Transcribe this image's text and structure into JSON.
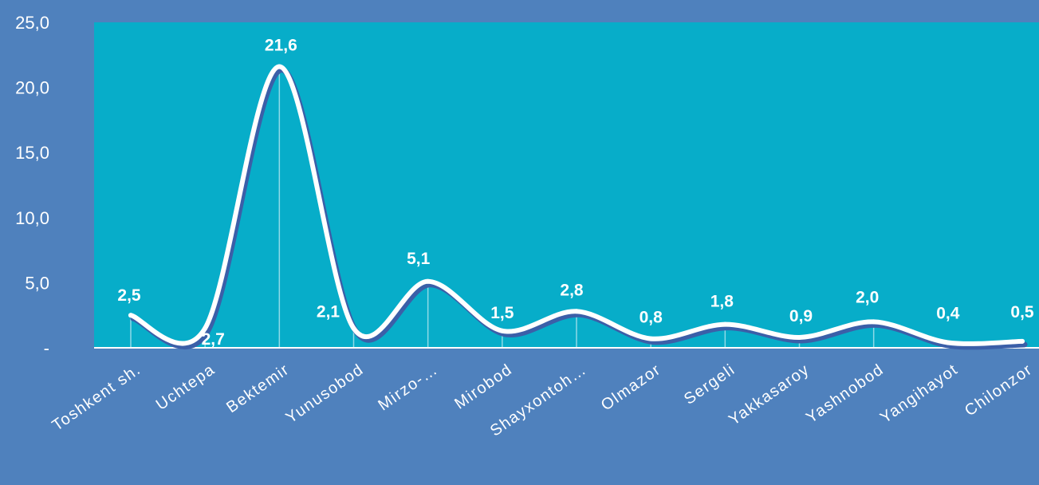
{
  "chart_data": {
    "type": "line",
    "categories": [
      "Toshkent sh.",
      "Uchtepa",
      "Bektemir",
      "Yunusobod",
      "Mirzo-…",
      "Mirobod",
      "Shayxontoh…",
      "Olmazor",
      "Sergeli",
      "Yakkasaroy",
      "Yashnobod",
      "Yangihayot",
      "Chilonzor"
    ],
    "values": [
      2.5,
      2.7,
      21.6,
      2.1,
      5.1,
      1.5,
      2.8,
      0.8,
      1.8,
      0.9,
      2.0,
      0.4,
      0.5
    ],
    "data_labels": [
      "2,5",
      "2,7",
      "21,6",
      "2,1",
      "5,1",
      "1,5",
      "2,8",
      "0,8",
      "1,8",
      "0,9",
      "2,0",
      "0,4",
      "0,5"
    ],
    "curve_values": [
      2.5,
      1.5,
      21.6,
      1.5,
      5.1,
      1.3,
      2.8,
      0.7,
      1.8,
      0.8,
      2.0,
      0.4,
      0.5
    ],
    "ylim": [
      0,
      25
    ],
    "y_ticks": [
      0,
      5,
      10,
      15,
      20,
      25
    ],
    "y_tick_labels": [
      "-",
      "5,0",
      "10,0",
      "15,0",
      "20,0",
      "25,0"
    ],
    "smooth": true,
    "grid": false,
    "drop_lines": true,
    "colors": {
      "background": "#4f81bd",
      "plot_area": "#07adc9",
      "line": "#ffffff",
      "shadow": "#3b5fa8",
      "text": "#ffffff"
    }
  }
}
